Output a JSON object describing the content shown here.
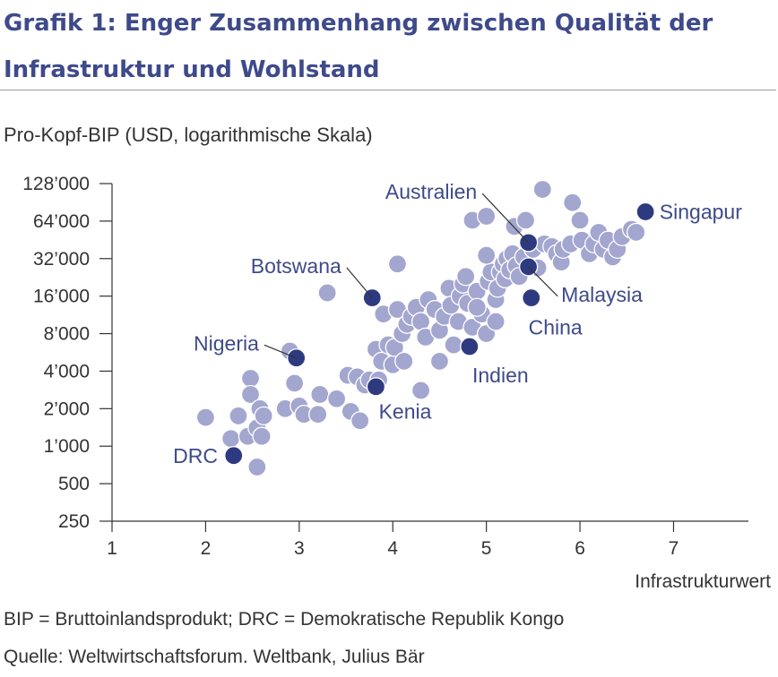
{
  "header": {
    "title": "Grafik 1: Enger Zusammenhang zwischen Qualität der Infrastruktur und Wohlstand"
  },
  "footer": {
    "note1": "BIP = Bruttoinlandsprodukt; DRC = Demokratische Republik Kongo",
    "note2": "Quelle: Weltwirtschaftsforum. Weltbank, Julius Bär"
  },
  "colors": {
    "title": "#3e4a8a",
    "highlight": "#2e3a80",
    "other": "#a3a6cf",
    "axis": "#333333"
  },
  "chart_data": {
    "type": "scatter",
    "ylabel": "Pro-Kopf-BIP (USD, logarithmische Skala)",
    "xlabel": "Infrastrukturwert",
    "xlim": [
      1,
      7.8
    ],
    "ylim": [
      250,
      128000
    ],
    "yscale": "log2",
    "x_ticks": [
      "1",
      "2",
      "3",
      "4",
      "5",
      "6",
      "7"
    ],
    "y_ticks": [
      {
        "value": 250,
        "label": "250"
      },
      {
        "value": 500,
        "label": "500"
      },
      {
        "value": 1000,
        "label": "1’000"
      },
      {
        "value": 2000,
        "label": "2’000"
      },
      {
        "value": 4000,
        "label": "4’000"
      },
      {
        "value": 8000,
        "label": "8’000"
      },
      {
        "value": 16000,
        "label": "16’000"
      },
      {
        "value": 32000,
        "label": "32’000"
      },
      {
        "value": 64000,
        "label": "64’000"
      },
      {
        "value": 128000,
        "label": "128’000"
      }
    ],
    "grid": false,
    "highlighted": [
      {
        "label": "Australien",
        "x": 5.45,
        "y": 43000,
        "label_x": 4.9,
        "label_y": 110000,
        "anchor": "end"
      },
      {
        "label": "Singapur",
        "x": 6.7,
        "y": 76000,
        "label_x": 6.85,
        "label_y": 76000,
        "anchor": "start"
      },
      {
        "label": "Botswana",
        "x": 3.78,
        "y": 15500,
        "label_x": 3.45,
        "label_y": 28000,
        "anchor": "end"
      },
      {
        "label": "Malaysia",
        "x": 5.45,
        "y": 27500,
        "label_x": 5.8,
        "label_y": 16500,
        "anchor": "start"
      },
      {
        "label": "China",
        "x": 5.48,
        "y": 15500,
        "label_x": 5.45,
        "label_y": 9000,
        "anchor": "start"
      },
      {
        "label": "Nigeria",
        "x": 2.97,
        "y": 5100,
        "label_x": 2.57,
        "label_y": 6700,
        "anchor": "end"
      },
      {
        "label": "Indien",
        "x": 4.82,
        "y": 6300,
        "label_x": 4.85,
        "label_y": 3700,
        "anchor": "start"
      },
      {
        "label": "Kenia",
        "x": 3.82,
        "y": 3000,
        "label_x": 3.85,
        "label_y": 1900,
        "anchor": "start"
      },
      {
        "label": "DRC",
        "x": 2.3,
        "y": 840,
        "label_x": 2.13,
        "label_y": 840,
        "anchor": "end"
      }
    ],
    "others": [
      [
        2.0,
        1700
      ],
      [
        2.27,
        1150
      ],
      [
        2.35,
        1750
      ],
      [
        2.45,
        1200
      ],
      [
        2.48,
        3500
      ],
      [
        2.48,
        2600
      ],
      [
        2.55,
        1400
      ],
      [
        2.58,
        2000
      ],
      [
        2.6,
        1200
      ],
      [
        2.62,
        1750
      ],
      [
        2.55,
        680
      ],
      [
        2.85,
        2000
      ],
      [
        2.9,
        5800
      ],
      [
        2.95,
        3200
      ],
      [
        3.0,
        2100
      ],
      [
        3.05,
        1800
      ],
      [
        3.2,
        1800
      ],
      [
        3.22,
        2600
      ],
      [
        3.4,
        2400
      ],
      [
        3.3,
        17000
      ],
      [
        3.52,
        3700
      ],
      [
        3.55,
        1900
      ],
      [
        3.62,
        3600
      ],
      [
        3.65,
        1600
      ],
      [
        3.7,
        3100
      ],
      [
        3.75,
        3400
      ],
      [
        3.82,
        6000
      ],
      [
        3.85,
        3400
      ],
      [
        3.88,
        4800
      ],
      [
        3.9,
        11500
      ],
      [
        3.95,
        6500
      ],
      [
        4.0,
        4500
      ],
      [
        4.02,
        6200
      ],
      [
        4.05,
        12500
      ],
      [
        4.05,
        29000
      ],
      [
        4.1,
        8000
      ],
      [
        4.12,
        4800
      ],
      [
        4.15,
        9500
      ],
      [
        4.2,
        11000
      ],
      [
        4.25,
        13000
      ],
      [
        4.3,
        10000
      ],
      [
        4.35,
        7500
      ],
      [
        4.38,
        15000
      ],
      [
        4.3,
        2800
      ],
      [
        4.45,
        12500
      ],
      [
        4.5,
        8500
      ],
      [
        4.55,
        11000
      ],
      [
        4.6,
        18500
      ],
      [
        4.62,
        13500
      ],
      [
        4.65,
        6500
      ],
      [
        4.5,
        4800
      ],
      [
        4.7,
        10000
      ],
      [
        4.72,
        16000
      ],
      [
        4.75,
        20000
      ],
      [
        4.8,
        14000
      ],
      [
        4.78,
        23000
      ],
      [
        4.85,
        9000
      ],
      [
        4.9,
        17500
      ],
      [
        4.95,
        11500
      ],
      [
        5.0,
        8000
      ],
      [
        5.02,
        21000
      ],
      [
        5.05,
        25000
      ],
      [
        5.1,
        15000
      ],
      [
        5.12,
        18500
      ],
      [
        5.15,
        25000
      ],
      [
        5.18,
        29000
      ],
      [
        5.2,
        22000
      ],
      [
        5.22,
        32000
      ],
      [
        5.25,
        26000
      ],
      [
        5.28,
        35000
      ],
      [
        5.3,
        58000
      ],
      [
        5.32,
        28000
      ],
      [
        5.35,
        23000
      ],
      [
        5.4,
        33000
      ],
      [
        5.42,
        65000
      ],
      [
        5.5,
        38000
      ],
      [
        5.55,
        27000
      ],
      [
        5.6,
        115000
      ],
      [
        5.62,
        42000
      ],
      [
        5.7,
        40000
      ],
      [
        5.75,
        35000
      ],
      [
        5.8,
        30000
      ],
      [
        5.82,
        38000
      ],
      [
        5.9,
        42000
      ],
      [
        5.92,
        90000
      ],
      [
        6.0,
        65000
      ],
      [
        6.02,
        45000
      ],
      [
        6.1,
        35000
      ],
      [
        6.15,
        42000
      ],
      [
        6.2,
        52000
      ],
      [
        6.25,
        38000
      ],
      [
        6.3,
        45000
      ],
      [
        6.35,
        33000
      ],
      [
        6.4,
        38000
      ],
      [
        6.45,
        48000
      ],
      [
        6.55,
        55000
      ],
      [
        6.6,
        52000
      ],
      [
        4.85,
        65000
      ],
      [
        5.0,
        70000
      ],
      [
        5.0,
        34000
      ],
      [
        4.9,
        13000
      ],
      [
        5.1,
        10000
      ]
    ]
  }
}
